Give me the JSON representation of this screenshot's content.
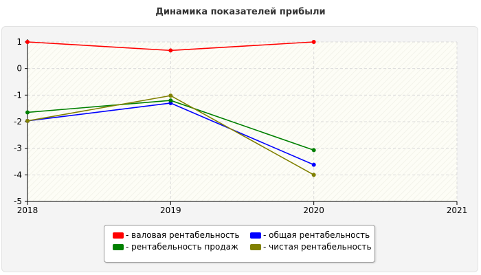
{
  "chart_data": {
    "type": "line",
    "title": "Динамика показателей прибыли",
    "x": [
      2018,
      2019,
      2020
    ],
    "x_ticks": [
      "2018",
      "2019",
      "2020",
      "2021"
    ],
    "xlim": [
      2018,
      2021
    ],
    "y_ticks": [
      "1",
      "0",
      "-1",
      "-2",
      "-3",
      "-4",
      "-5"
    ],
    "ylim": [
      -5,
      1
    ],
    "grid": true,
    "legend_position": "bottom",
    "series": [
      {
        "name": "- валовая рентабельность",
        "color": "#ff0000",
        "values": [
          1.0,
          0.68,
          1.0
        ]
      },
      {
        "name": "- общая рентабельность",
        "color": "#0000ff",
        "values": [
          -1.97,
          -1.3,
          -3.62
        ]
      },
      {
        "name": "- рентабельность продаж",
        "color": "#008000",
        "values": [
          -1.65,
          -1.2,
          -3.07
        ]
      },
      {
        "name": "- чистая рентабельность",
        "color": "#808000",
        "values": [
          -1.97,
          -1.02,
          -4.0
        ]
      }
    ]
  }
}
